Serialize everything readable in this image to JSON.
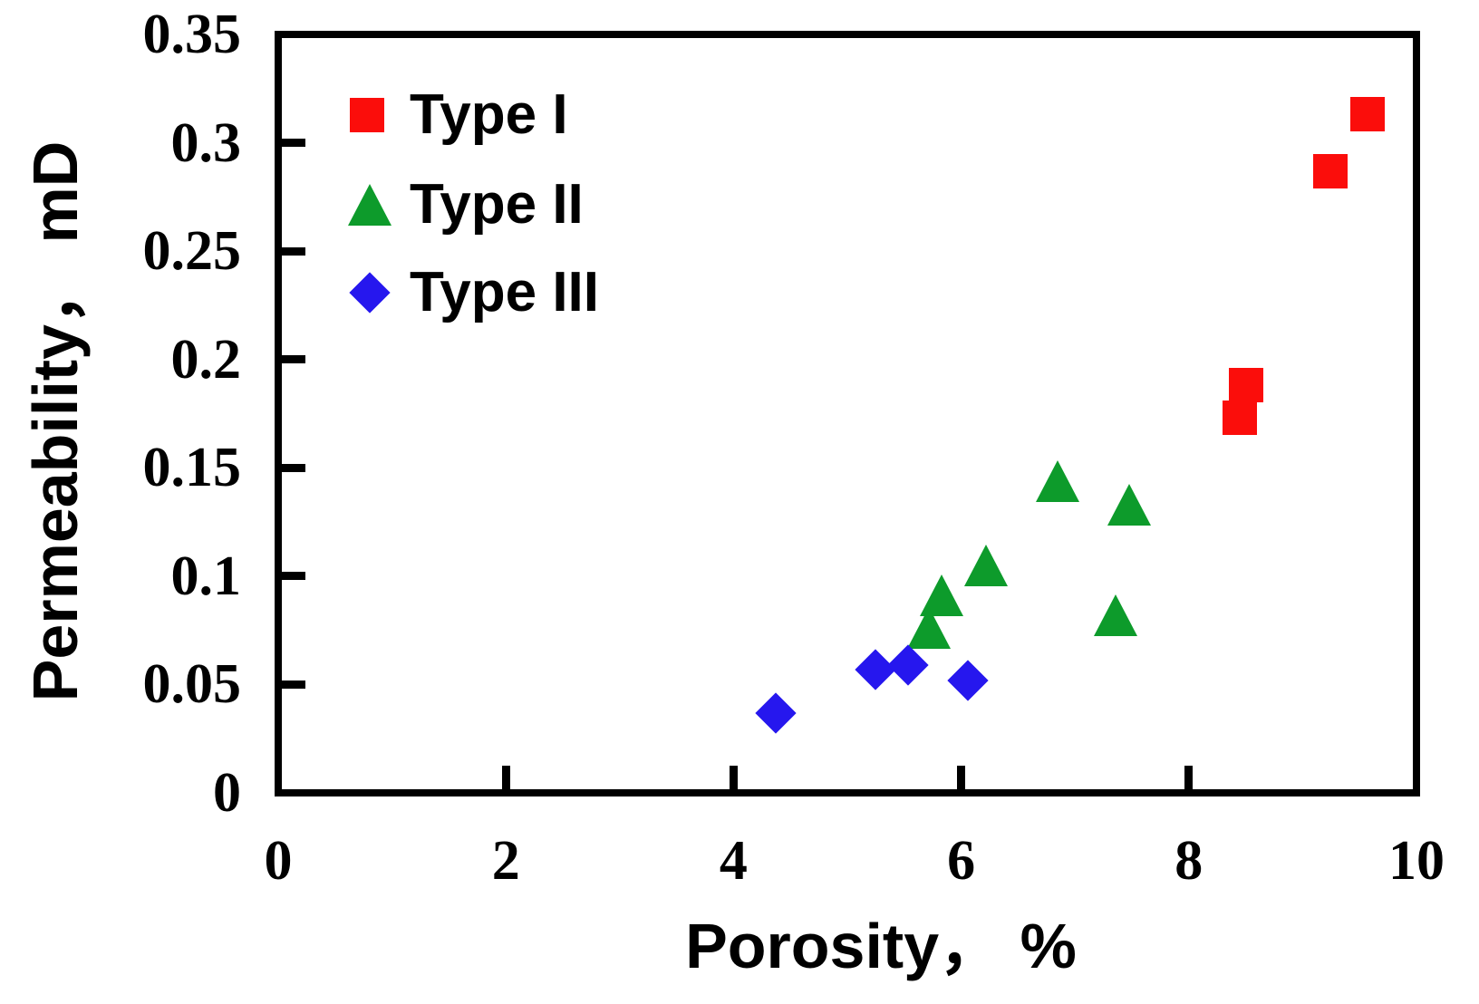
{
  "chart_data": {
    "type": "scatter",
    "title": "",
    "xlabel": "Porosity， %",
    "ylabel": "Permeability， mD",
    "xlim": [
      0,
      10
    ],
    "ylim": [
      0,
      0.35
    ],
    "x_ticks": [
      0,
      2,
      4,
      6,
      8,
      10
    ],
    "y_ticks": [
      0,
      0.05,
      0.1,
      0.15,
      0.2,
      0.25,
      0.3,
      0.35
    ],
    "x_tick_labels": [
      "0",
      "2",
      "4",
      "6",
      "8",
      "10"
    ],
    "y_tick_labels": [
      "0",
      "0.05",
      "0.1",
      "0.15",
      "0.2",
      "0.25",
      "0.3",
      "0.35"
    ],
    "grid": false,
    "legend_position": "top-left-inside",
    "axis_color": "#000000",
    "background_color": "#ffffff",
    "series": [
      {
        "name": "Type I",
        "marker": "square",
        "color": "#fb0d0b",
        "points": [
          [
            9.57,
            0.313
          ],
          [
            9.24,
            0.287
          ],
          [
            8.5,
            0.188
          ],
          [
            8.45,
            0.173
          ]
        ]
      },
      {
        "name": "Type II",
        "marker": "triangle",
        "color": "#0d9b2b",
        "points": [
          [
            6.85,
            0.144
          ],
          [
            7.48,
            0.133
          ],
          [
            7.36,
            0.082
          ],
          [
            6.22,
            0.105
          ],
          [
            5.83,
            0.091
          ],
          [
            5.72,
            0.076
          ]
        ]
      },
      {
        "name": "Type III",
        "marker": "diamond",
        "color": "#2617ee",
        "points": [
          [
            4.37,
            0.037
          ],
          [
            5.25,
            0.057
          ],
          [
            5.53,
            0.059
          ],
          [
            6.06,
            0.052
          ]
        ]
      }
    ]
  }
}
